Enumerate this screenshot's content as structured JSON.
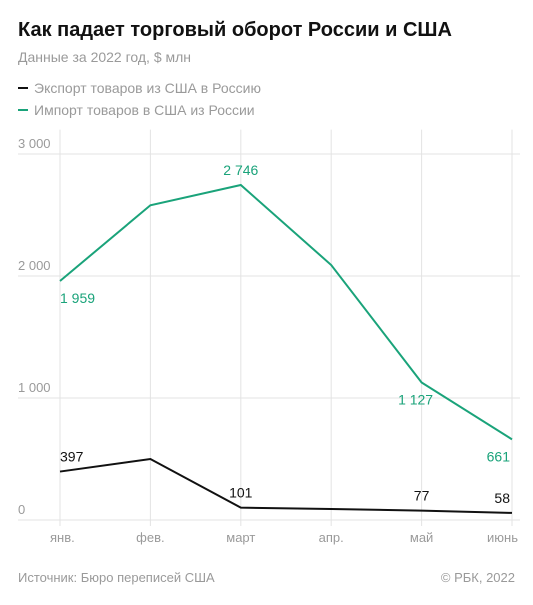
{
  "chart_data": {
    "type": "line",
    "title": "Как падает торговый оборот России и США",
    "subtitle": "Данные за 2022 год, $ млн",
    "categories": [
      "янв.",
      "фев.",
      "март",
      "апр.",
      "май",
      "июнь"
    ],
    "series": [
      {
        "name": "Экспорт товаров из США в Россию",
        "color": "#111111",
        "values": [
          397,
          500,
          101,
          90,
          77,
          58
        ],
        "value_labels": [
          "397",
          null,
          "101",
          null,
          "77",
          "58"
        ]
      },
      {
        "name": "Импорт товаров в США из России",
        "color": "#1aa37a",
        "values": [
          1959,
          2580,
          2746,
          2090,
          1127,
          661
        ],
        "value_labels": [
          "1 959",
          null,
          "2 746",
          null,
          "1 127",
          "661"
        ]
      }
    ],
    "ylim": [
      0,
      3200
    ],
    "yticks": [
      0,
      {
        "value": 1000,
        "label": "1 000"
      },
      {
        "value": 2000,
        "label": "2 000"
      },
      {
        "value": 3000,
        "label": "3 000"
      }
    ],
    "grid": true,
    "source": "Источник: Бюро переписей США",
    "credit": "© РБК, 2022"
  }
}
